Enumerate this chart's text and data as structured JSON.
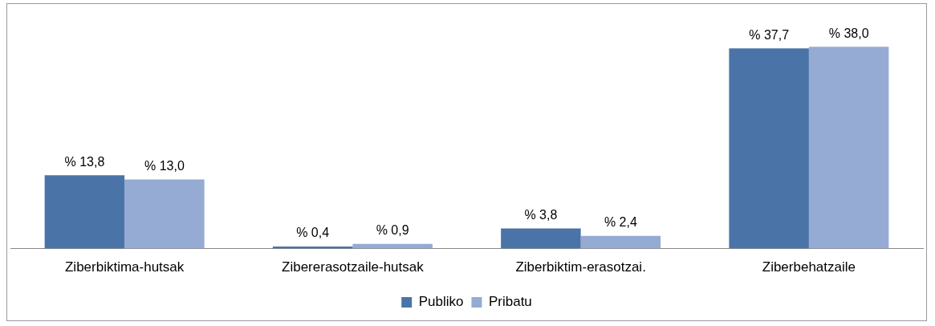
{
  "chart_data": {
    "type": "bar",
    "categories": [
      "Ziberbiktima-hutsak",
      "Zibererasotzaile-hutsak",
      "Ziberbiktim-erasotzai.",
      "Ziberbehatzaile"
    ],
    "series": [
      {
        "name": "Publiko",
        "color": "#4a74a8",
        "values": [
          13.8,
          0.4,
          3.8,
          37.7
        ],
        "value_labels": [
          "% 13,8",
          "% 0,4",
          "% 3,8",
          "% 37,7"
        ]
      },
      {
        "name": "Pribatu",
        "color": "#95abd3",
        "values": [
          13.0,
          0.9,
          2.4,
          38.0
        ],
        "value_labels": [
          "% 13,0",
          "% 0,9",
          "% 2,4",
          "% 38,0"
        ]
      }
    ],
    "legend": "bottom",
    "grid": false
  }
}
